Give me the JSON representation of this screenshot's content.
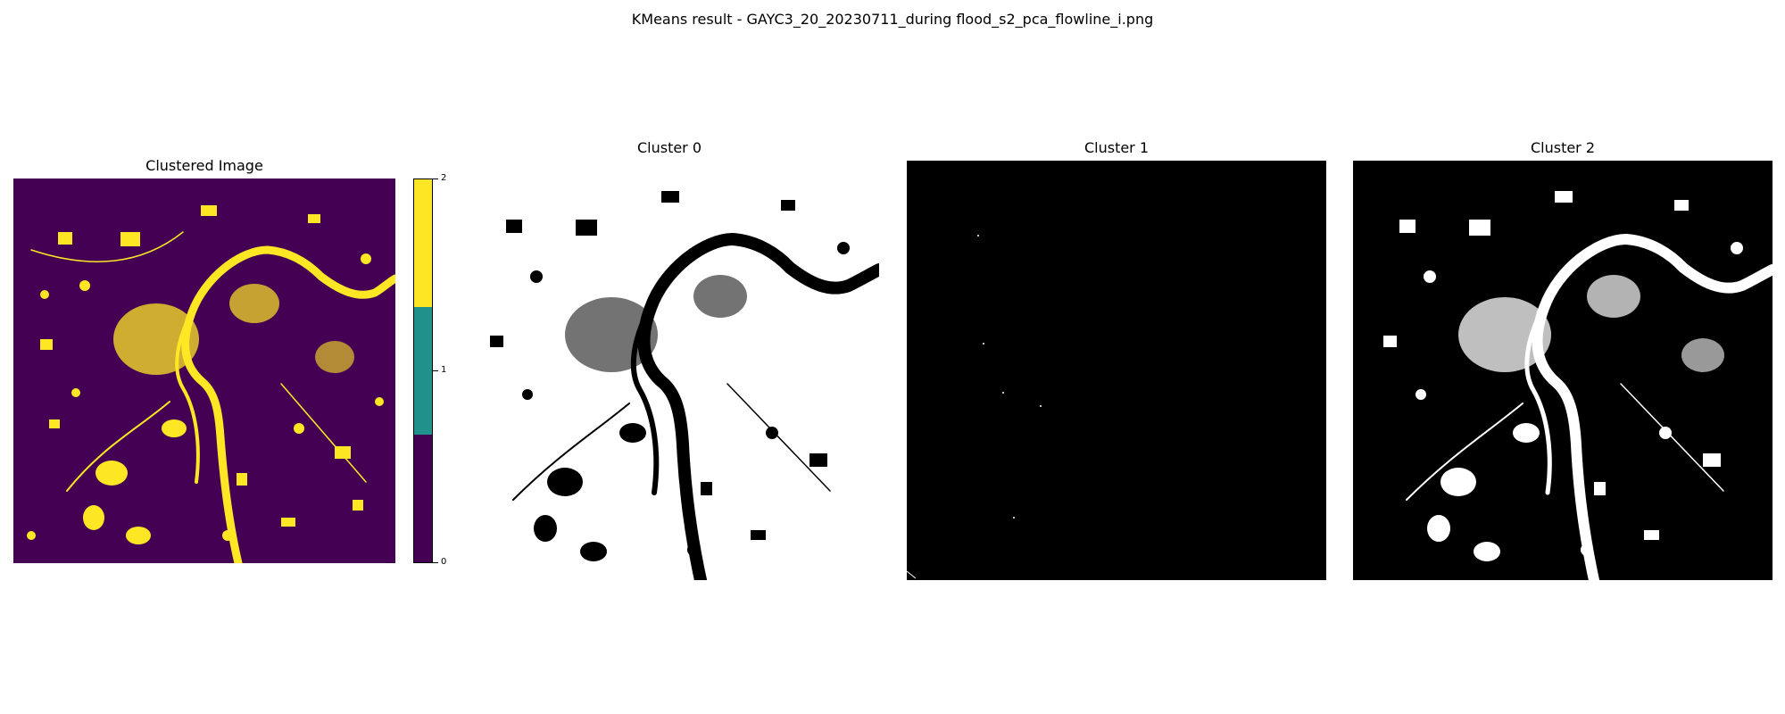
{
  "figure": {
    "suptitle": "KMeans result - GAYC3_20_20230711_during flood_s2_pca_flowline_i.png"
  },
  "panels": [
    {
      "id": "clustered",
      "title": "Clustered Image"
    },
    {
      "id": "cluster0",
      "title": "Cluster 0"
    },
    {
      "id": "cluster1",
      "title": "Cluster 1"
    },
    {
      "id": "cluster2",
      "title": "Cluster 2"
    }
  ],
  "colorbar": {
    "ticks": [
      "2",
      "1",
      "0"
    ],
    "colors": [
      "#fde725",
      "#21918c",
      "#440154"
    ]
  },
  "palette": {
    "viridis_low": "#440154",
    "viridis_mid": "#21918c",
    "viridis_high": "#fde725",
    "mask_on": "#ffffff",
    "mask_off": "#000000"
  }
}
